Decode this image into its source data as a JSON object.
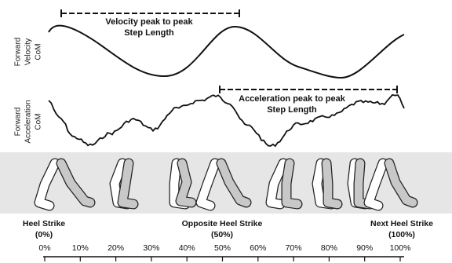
{
  "velocity_label": [
    "Forward",
    "Velocity",
    "CoM"
  ],
  "acceleration_label": [
    "Forward",
    "Acceleration",
    "CoM"
  ],
  "velocity_annotation": [
    "Velocity peak to peak",
    "Step Length"
  ],
  "acceleration_annotation": [
    "Acceleration peak to peak",
    "Step Length"
  ],
  "events": [
    {
      "name": "Heel Strike",
      "percent": "(0%)"
    },
    {
      "name": "Opposite Heel Strike",
      "percent": "(50%)"
    },
    {
      "name": "Next Heel Strike",
      "percent": "(100%)"
    }
  ],
  "axis_ticks": [
    "0%",
    "10%",
    "20%",
    "30%",
    "40%",
    "50%",
    "60%",
    "70%",
    "80%",
    "90%",
    "100%"
  ]
}
